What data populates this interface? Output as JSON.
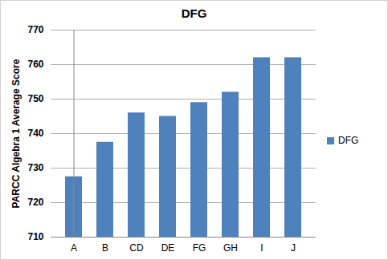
{
  "chart_data": {
    "type": "bar",
    "title": "DFG",
    "ylabel": "PARCC Algebra 1 Average Score",
    "categories": [
      "A",
      "B",
      "CD",
      "DE",
      "FG",
      "GH",
      "I",
      "J"
    ],
    "series": [
      {
        "name": "DFG",
        "color": "#4f81bd",
        "values": [
          727.5,
          737.5,
          746,
          745,
          749,
          752,
          762,
          762
        ]
      }
    ],
    "ylim": [
      710,
      770
    ],
    "yticks": [
      710,
      720,
      730,
      740,
      750,
      760,
      770
    ],
    "grid": true,
    "legend": "right"
  }
}
